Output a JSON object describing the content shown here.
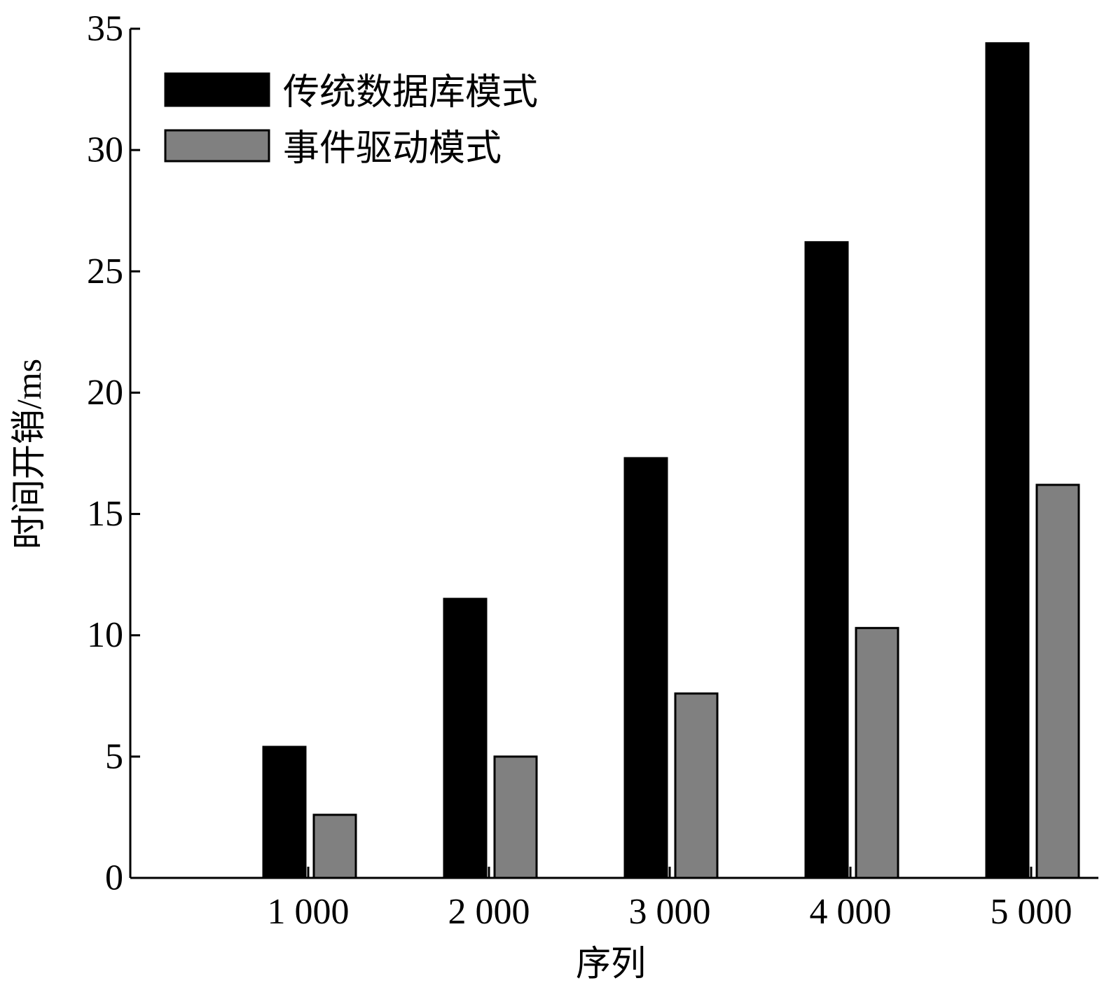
{
  "chart_data": {
    "type": "bar",
    "title": "",
    "xlabel": "序列",
    "ylabel": "时间开销/ms",
    "categories": [
      "1 000",
      "2 000",
      "3 000",
      "4 000",
      "5 000"
    ],
    "series": [
      {
        "name": "传统数据库模式",
        "color": "#000000",
        "values": [
          5.4,
          11.5,
          17.3,
          26.2,
          34.4
        ]
      },
      {
        "name": "事件驱动模式",
        "color": "#808080",
        "values": [
          2.6,
          5.0,
          7.6,
          10.3,
          16.2
        ]
      }
    ],
    "ylim": [
      0,
      35
    ],
    "yticks": [
      0,
      5,
      10,
      15,
      20,
      25,
      30,
      35
    ],
    "legend_position": "top-left",
    "grid": false
  }
}
